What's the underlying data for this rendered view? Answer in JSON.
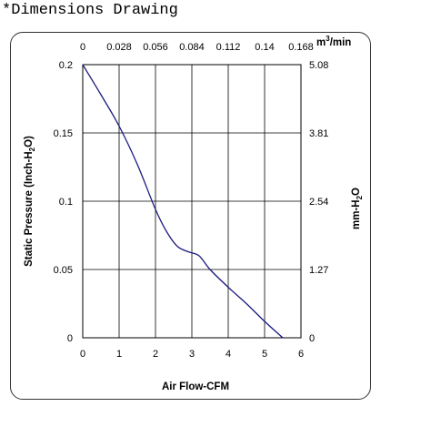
{
  "heading": "*Dimensions Drawing",
  "chart_data": {
    "type": "line",
    "title": "",
    "xlabel": "Air Flow-CFM",
    "ylabel_left": "Static Pressure (Inch-H2O)",
    "ylabel_right": "mm-H2O",
    "x2label": "m3/min",
    "xlim": [
      0,
      6
    ],
    "ylim": [
      0,
      0.2
    ],
    "x_ticks": [
      "0",
      "1",
      "2",
      "3",
      "4",
      "5",
      "6"
    ],
    "y_ticks": [
      "0",
      "0.05",
      "0.1",
      "0.15",
      "0.2"
    ],
    "x2_ticks": [
      "0",
      "0.028",
      "0.056",
      "0.084",
      "0.112",
      "0.14",
      "0.168"
    ],
    "y2_ticks": [
      "0",
      "1.27",
      "2.54",
      "3.81",
      "5.08"
    ],
    "grid": true,
    "line_color": "#1a1a7e",
    "series": [
      {
        "x": [
          0,
          0.5,
          1.0,
          1.5,
          2.0,
          2.3,
          2.6,
          2.9,
          3.2,
          3.5,
          4.0,
          4.5,
          5.0,
          5.5
        ],
        "y": [
          0.2,
          0.178,
          0.155,
          0.127,
          0.094,
          0.078,
          0.067,
          0.063,
          0.06,
          0.05,
          0.037,
          0.025,
          0.012,
          0.0
        ]
      }
    ]
  }
}
